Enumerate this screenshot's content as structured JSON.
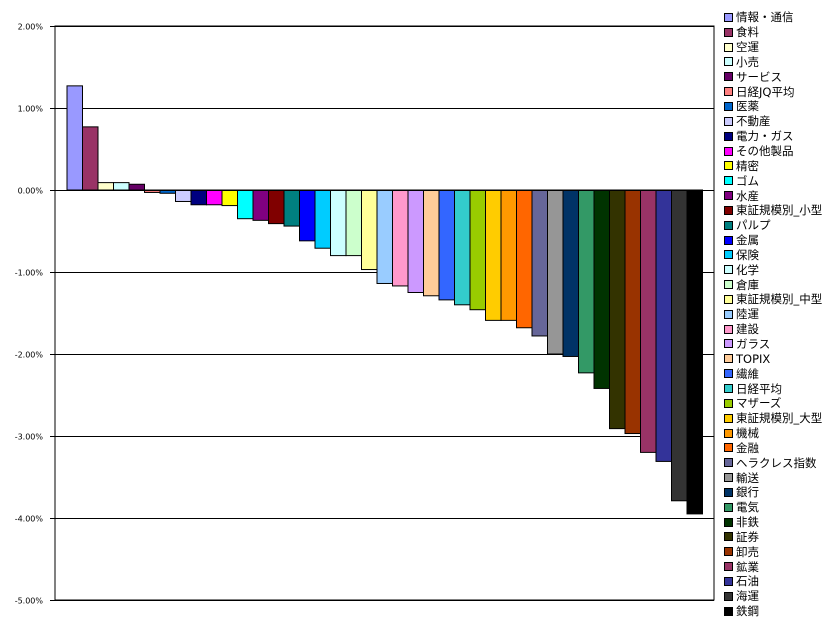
{
  "chart_data": {
    "type": "bar",
    "title": "",
    "xlabel": "",
    "ylabel": "",
    "ylim": [
      -5,
      2
    ],
    "yticks": [
      2,
      1,
      0,
      -1,
      -2,
      -3,
      -4,
      -5
    ],
    "ytick_labels": [
      "2.00%",
      "1.00%",
      "0.00%",
      "-1.00%",
      "-2.00%",
      "-3.00%",
      "-4.00%",
      "-5.00%"
    ],
    "grid": true,
    "legend_placement": "right",
    "series": [
      {
        "name": "情報・通信",
        "value": 1.27,
        "color": "#9999FF"
      },
      {
        "name": "食料",
        "value": 0.77,
        "color": "#993366"
      },
      {
        "name": "空運",
        "value": 0.09,
        "color": "#FFFFCC"
      },
      {
        "name": "小売",
        "value": 0.09,
        "color": "#CCFFFF"
      },
      {
        "name": "サービス",
        "value": 0.07,
        "color": "#660066"
      },
      {
        "name": "日経JQ平均",
        "value": -0.03,
        "color": "#FF8080"
      },
      {
        "name": "医薬",
        "value": -0.04,
        "color": "#0066CC"
      },
      {
        "name": "不動産",
        "value": -0.14,
        "color": "#CCCCFF"
      },
      {
        "name": "電力・ガス",
        "value": -0.18,
        "color": "#000080"
      },
      {
        "name": "その他製品",
        "value": -0.18,
        "color": "#FF00FF"
      },
      {
        "name": "精密",
        "value": -0.19,
        "color": "#FFFF00"
      },
      {
        "name": "ゴム",
        "value": -0.35,
        "color": "#00FFFF"
      },
      {
        "name": "水産",
        "value": -0.37,
        "color": "#800080"
      },
      {
        "name": "東証規模別_小型",
        "value": -0.41,
        "color": "#800000"
      },
      {
        "name": "パルプ",
        "value": -0.44,
        "color": "#008080"
      },
      {
        "name": "金属",
        "value": -0.62,
        "color": "#0000FF"
      },
      {
        "name": "保険",
        "value": -0.71,
        "color": "#00CCFF"
      },
      {
        "name": "化学",
        "value": -0.8,
        "color": "#CCFFFF"
      },
      {
        "name": "倉庫",
        "value": -0.8,
        "color": "#CCFFCC"
      },
      {
        "name": "東証規模別_中型",
        "value": -0.97,
        "color": "#FFFF99"
      },
      {
        "name": "陸運",
        "value": -1.14,
        "color": "#99CCFF"
      },
      {
        "name": "建設",
        "value": -1.17,
        "color": "#FF99CC"
      },
      {
        "name": "ガラス",
        "value": -1.25,
        "color": "#CC99FF"
      },
      {
        "name": "TOPIX",
        "value": -1.29,
        "color": "#FFCC99"
      },
      {
        "name": "繊維",
        "value": -1.34,
        "color": "#3366FF"
      },
      {
        "name": "日経平均",
        "value": -1.4,
        "color": "#33CCCC"
      },
      {
        "name": "マザーズ",
        "value": -1.46,
        "color": "#99CC00"
      },
      {
        "name": "東証規模別_大型",
        "value": -1.59,
        "color": "#FFCC00"
      },
      {
        "name": "機械",
        "value": -1.59,
        "color": "#FF9900"
      },
      {
        "name": "金融",
        "value": -1.68,
        "color": "#FF6600"
      },
      {
        "name": "ヘラクレス指数",
        "value": -1.78,
        "color": "#666699"
      },
      {
        "name": "輸送",
        "value": -2.0,
        "color": "#969696"
      },
      {
        "name": "銀行",
        "value": -2.03,
        "color": "#003366"
      },
      {
        "name": "電気",
        "value": -2.23,
        "color": "#339966"
      },
      {
        "name": "非鉄",
        "value": -2.42,
        "color": "#003300"
      },
      {
        "name": "証券",
        "value": -2.91,
        "color": "#333300"
      },
      {
        "name": "卸売",
        "value": -2.97,
        "color": "#993300"
      },
      {
        "name": "鉱業",
        "value": -3.2,
        "color": "#993366"
      },
      {
        "name": "石油",
        "value": -3.31,
        "color": "#333399"
      },
      {
        "name": "海運",
        "value": -3.79,
        "color": "#333333"
      },
      {
        "name": "鉄鋼",
        "value": -3.95,
        "color": "#000000"
      }
    ]
  }
}
